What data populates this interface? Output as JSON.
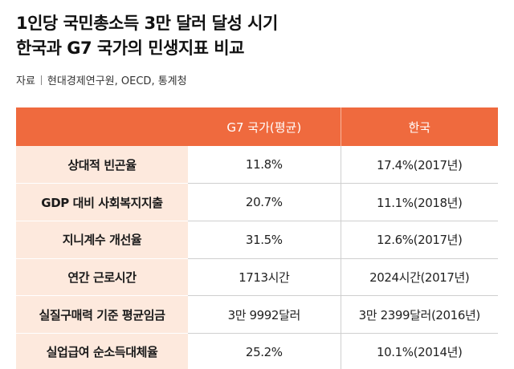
{
  "title": {
    "line1": "1인당 국민총소득 3만 달러 달성 시기",
    "line2": "한국과 G7 국가의 민생지표 비교"
  },
  "source": {
    "label": "자료",
    "text": "현대경제연구원, OECD, 통계청"
  },
  "table": {
    "headers": [
      "",
      "G7 국가(평균)",
      "한국"
    ],
    "rows": [
      {
        "label": "상대적 빈곤율",
        "g7": "11.8%",
        "korea": "17.4%(2017년)"
      },
      {
        "label": "GDP 대비 사회복지지출",
        "g7": "20.7%",
        "korea": "11.1%(2018년)"
      },
      {
        "label": "지니계수 개선율",
        "g7": "31.5%",
        "korea": "12.6%(2017년)"
      },
      {
        "label": "연간 근로시간",
        "g7": "1713시간",
        "korea": "2024시간(2017년)"
      },
      {
        "label": "실질구매력 기준 평균임금",
        "g7": "3만 9992달러",
        "korea": "3만 2399달러(2016년)"
      },
      {
        "label": "실업급여 순소득대체율",
        "g7": "25.2%",
        "korea": "10.1%(2014년)"
      }
    ]
  },
  "colors": {
    "header_bg": "#ef6a3e",
    "label_bg": "#fde9dd"
  }
}
